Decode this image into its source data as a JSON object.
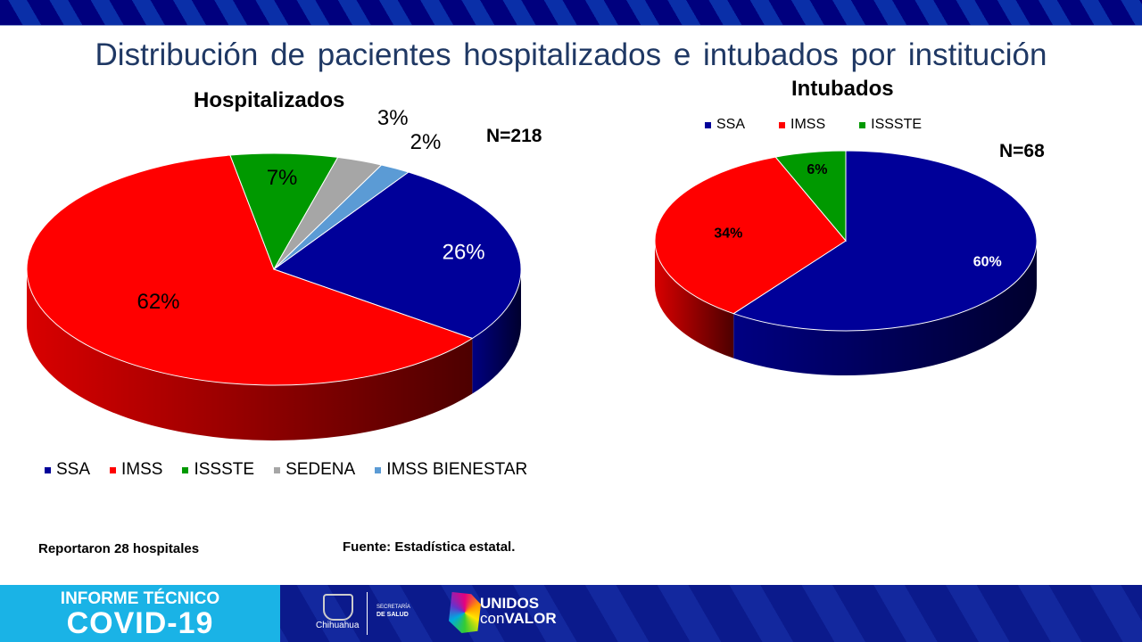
{
  "title": "Distribución de pacientes hospitalizados e intubados por institución",
  "chart_data": [
    {
      "type": "pie",
      "title": "Hospitalizados",
      "annotation": "N=218",
      "categories": [
        "SSA",
        "IMSS",
        "ISSSTE",
        "SEDENA",
        "IMSS BIENESTAR"
      ],
      "values": [
        26,
        62,
        7,
        3,
        2
      ],
      "labels": [
        "26%",
        "62%",
        "7%",
        "3%",
        "2%"
      ],
      "colors": [
        "#000099",
        "#ff0000",
        "#009900",
        "#a6a6a6",
        "#5b9bd5"
      ],
      "legend": "bottom",
      "style": "3d"
    },
    {
      "type": "pie",
      "title": "Intubados",
      "annotation": "N=68",
      "categories": [
        "SSA",
        "IMSS",
        "ISSSTE"
      ],
      "values": [
        60,
        34,
        6
      ],
      "labels": [
        "60%",
        "34%",
        "6%"
      ],
      "colors": [
        "#000099",
        "#ff0000",
        "#009900"
      ],
      "legend": "top",
      "style": "3d"
    }
  ],
  "notes": {
    "hospitals": "Reportaron 28 hospitales",
    "source": "Fuente: Estadística estatal."
  },
  "footer": {
    "line1": "INFORME TÉCNICO",
    "line2": "COVID-19",
    "state": "Chihuahua",
    "dept1": "SECRETARÍA",
    "dept2": "DE SALUD",
    "slogan1": "UNIDOS",
    "slogan2a": "con",
    "slogan2b": "VALOR"
  }
}
